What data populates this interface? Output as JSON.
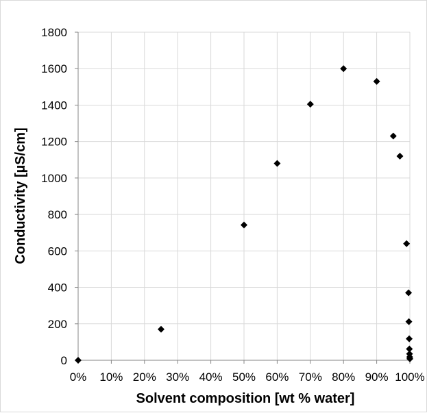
{
  "chart_data": {
    "type": "scatter",
    "title": "",
    "xlabel": "Solvent composition [wt % water]",
    "ylabel": "Conductivity [µS/cm]",
    "xlim": [
      0,
      100
    ],
    "ylim": [
      0,
      1800
    ],
    "x_ticks": [
      "0%",
      "10%",
      "20%",
      "30%",
      "40%",
      "50%",
      "60%",
      "70%",
      "80%",
      "90%",
      "100%"
    ],
    "y_ticks": [
      "0",
      "200",
      "400",
      "600",
      "800",
      "1000",
      "1200",
      "1400",
      "1600",
      "1800"
    ],
    "grid": true,
    "marker": "diamond",
    "marker_color": "#000000",
    "grid_color": "#d9d9d9",
    "points": [
      {
        "x": 0,
        "y": 0
      },
      {
        "x": 25,
        "y": 170
      },
      {
        "x": 50,
        "y": 742
      },
      {
        "x": 60,
        "y": 1080
      },
      {
        "x": 70,
        "y": 1405
      },
      {
        "x": 80,
        "y": 1600
      },
      {
        "x": 90,
        "y": 1530
      },
      {
        "x": 95,
        "y": 1230
      },
      {
        "x": 97,
        "y": 1120
      },
      {
        "x": 99,
        "y": 640
      },
      {
        "x": 99.6,
        "y": 370
      },
      {
        "x": 99.7,
        "y": 212
      },
      {
        "x": 99.8,
        "y": 118
      },
      {
        "x": 99.85,
        "y": 62
      },
      {
        "x": 99.9,
        "y": 35
      },
      {
        "x": 99.95,
        "y": 18
      },
      {
        "x": 100,
        "y": 8
      }
    ]
  }
}
